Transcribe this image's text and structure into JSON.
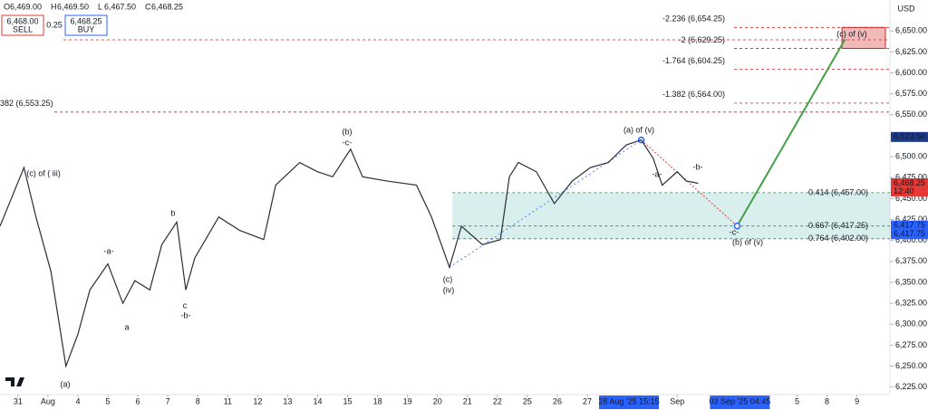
{
  "chart_data": {
    "type": "line",
    "ohlc": {
      "labels": [
        "O",
        "H",
        "L",
        "C"
      ],
      "values": [
        {
          "value": 6469.0,
          "label": "6,469.00"
        },
        {
          "value": 6469.5,
          "label": "6,469.50"
        },
        {
          "value": 6467.5,
          "label": "6,467.50"
        },
        {
          "value": 6468.25,
          "label": "6,468.25"
        }
      ]
    },
    "trade": {
      "sell": {
        "value": 6468.0,
        "label": "6,468.00"
      },
      "sell_text": "SELL",
      "spread": 0.25,
      "buy": {
        "value": 6468.25,
        "label": "6,468.25"
      },
      "buy_text": "BUY"
    },
    "currency": "USD",
    "series": [
      {
        "name": "Price",
        "color": "#2a2e39",
        "x": [
          -0.6,
          0.2,
          0.6,
          1.1,
          1.6,
          2.0,
          2.4,
          3.0,
          3.5,
          3.9,
          4.4,
          4.8,
          5.3,
          5.6,
          5.9,
          6.7,
          7.4,
          8.2,
          8.6,
          9.4,
          10.0,
          10.5,
          11.1,
          11.5,
          12.3,
          13.3,
          13.8,
          14.4,
          14.8,
          15.5,
          16.1,
          16.4,
          16.7,
          17.3,
          17.9,
          18.5,
          19.1,
          19.7,
          20.3,
          20.8,
          21.2,
          21.5,
          22.0,
          22.3,
          22.7
        ],
        "values": [
          6417,
          6487,
          6428,
          6363,
          6250,
          6288,
          6341,
          6372,
          6325,
          6352,
          6341,
          6395,
          6422,
          6341,
          6379,
          6428,
          6412,
          6401,
          6466,
          6493,
          6482,
          6476,
          6509,
          6476,
          6471,
          6466,
          6428,
          6368,
          6417,
          6395,
          6401,
          6476,
          6493,
          6482,
          6444,
          6471,
          6487,
          6493,
          6514,
          6520,
          6498,
          6466,
          6482,
          6471,
          6468.25
        ]
      }
    ],
    "xlim": [
      -0.6,
      29.1
    ],
    "ylim": [
      6216,
      6687
    ],
    "xticks": [
      {
        "value": 0,
        "label": "31"
      },
      {
        "value": 1,
        "label": "Aug"
      },
      {
        "value": 2,
        "label": "4"
      },
      {
        "value": 3,
        "label": "5"
      },
      {
        "value": 4,
        "label": "6"
      },
      {
        "value": 5,
        "label": "7"
      },
      {
        "value": 6,
        "label": "8"
      },
      {
        "value": 7,
        "label": "11"
      },
      {
        "value": 8,
        "label": "12"
      },
      {
        "value": 9,
        "label": "13"
      },
      {
        "value": 10,
        "label": "14"
      },
      {
        "value": 11,
        "label": "15"
      },
      {
        "value": 12,
        "label": "18"
      },
      {
        "value": 13,
        "label": "19"
      },
      {
        "value": 14,
        "label": "20"
      },
      {
        "value": 15,
        "label": "21"
      },
      {
        "value": 16,
        "label": "22"
      },
      {
        "value": 17,
        "label": "25"
      },
      {
        "value": 18,
        "label": "26"
      },
      {
        "value": 19,
        "label": "27"
      },
      {
        "value": 22,
        "label": "Sep"
      },
      {
        "value": 26,
        "label": "5"
      },
      {
        "value": 27,
        "label": "8"
      },
      {
        "value": 28,
        "label": "9"
      }
    ],
    "xmarkers": [
      {
        "value": 20.3,
        "label": "28 Aug '25   15:15"
      },
      {
        "value": 24,
        "label": "03 Sep '25   04:45"
      }
    ],
    "yticks": [
      {
        "value": 6225,
        "label": "6,225.00"
      },
      {
        "value": 6250,
        "label": "6,250.00"
      },
      {
        "value": 6275,
        "label": "6,275.00"
      },
      {
        "value": 6300,
        "label": "6,300.00"
      },
      {
        "value": 6325,
        "label": "6,325.00"
      },
      {
        "value": 6350,
        "label": "6,350.00"
      },
      {
        "value": 6375,
        "label": "6,375.00"
      },
      {
        "value": 6400,
        "label": "6,400.00"
      },
      {
        "value": 6425,
        "label": "6,425.00"
      },
      {
        "value": 6450,
        "label": "6,450.00"
      },
      {
        "value": 6475,
        "label": "6,475.00"
      },
      {
        "value": 6500,
        "label": "6,500.00"
      },
      {
        "value": 6525,
        "label": "6,525.00"
      },
      {
        "value": 6550,
        "label": "6,550.00"
      },
      {
        "value": 6575,
        "label": "6,575.00"
      },
      {
        "value": 6600,
        "label": "6,600.00"
      },
      {
        "value": 6625,
        "label": "6,625.00"
      },
      {
        "value": 6650,
        "label": "6,650.00"
      }
    ],
    "price_tags": [
      {
        "value": 6523.5,
        "label": "6,523.50",
        "color": "#1e3a8a"
      },
      {
        "value": 6468.25,
        "label": "6,468.25",
        "sub": "12:40",
        "color": "#e53935"
      },
      {
        "value": 6417.75,
        "label": "6,417.75",
        "color": "#2962ff"
      }
    ],
    "fib_red": [
      {
        "value": 6654.25,
        "label": "-2.236 (6,654.25)"
      },
      {
        "value": 6629.25,
        "label": "-2 (6,629.25)"
      },
      {
        "value": 6604.25,
        "label": "-1.764 (6,604.25)"
      },
      {
        "value": 6564.0,
        "label": "-1.382 (6,564.00)"
      },
      {
        "value": 6553.25,
        "label": "382 (6,553.25)"
      }
    ],
    "fib_green": [
      {
        "value": 6457.0,
        "label": "0.414 (6,457.00)"
      },
      {
        "value": 6417.25,
        "label": "0.667 (6,417.25)"
      },
      {
        "value": 6402.0,
        "label": "0.764 (6,402.00)"
      }
    ],
    "waves": [
      "(c) of ( iii)",
      "(a)",
      "-a-",
      "a",
      "b",
      "c",
      "-b-",
      "(b)",
      "-c-",
      "(c)",
      "(iv)",
      "(a) of (v)",
      "-a-",
      "-b-",
      "-c-",
      "(b) of (v)",
      "(c) of (v)"
    ]
  }
}
